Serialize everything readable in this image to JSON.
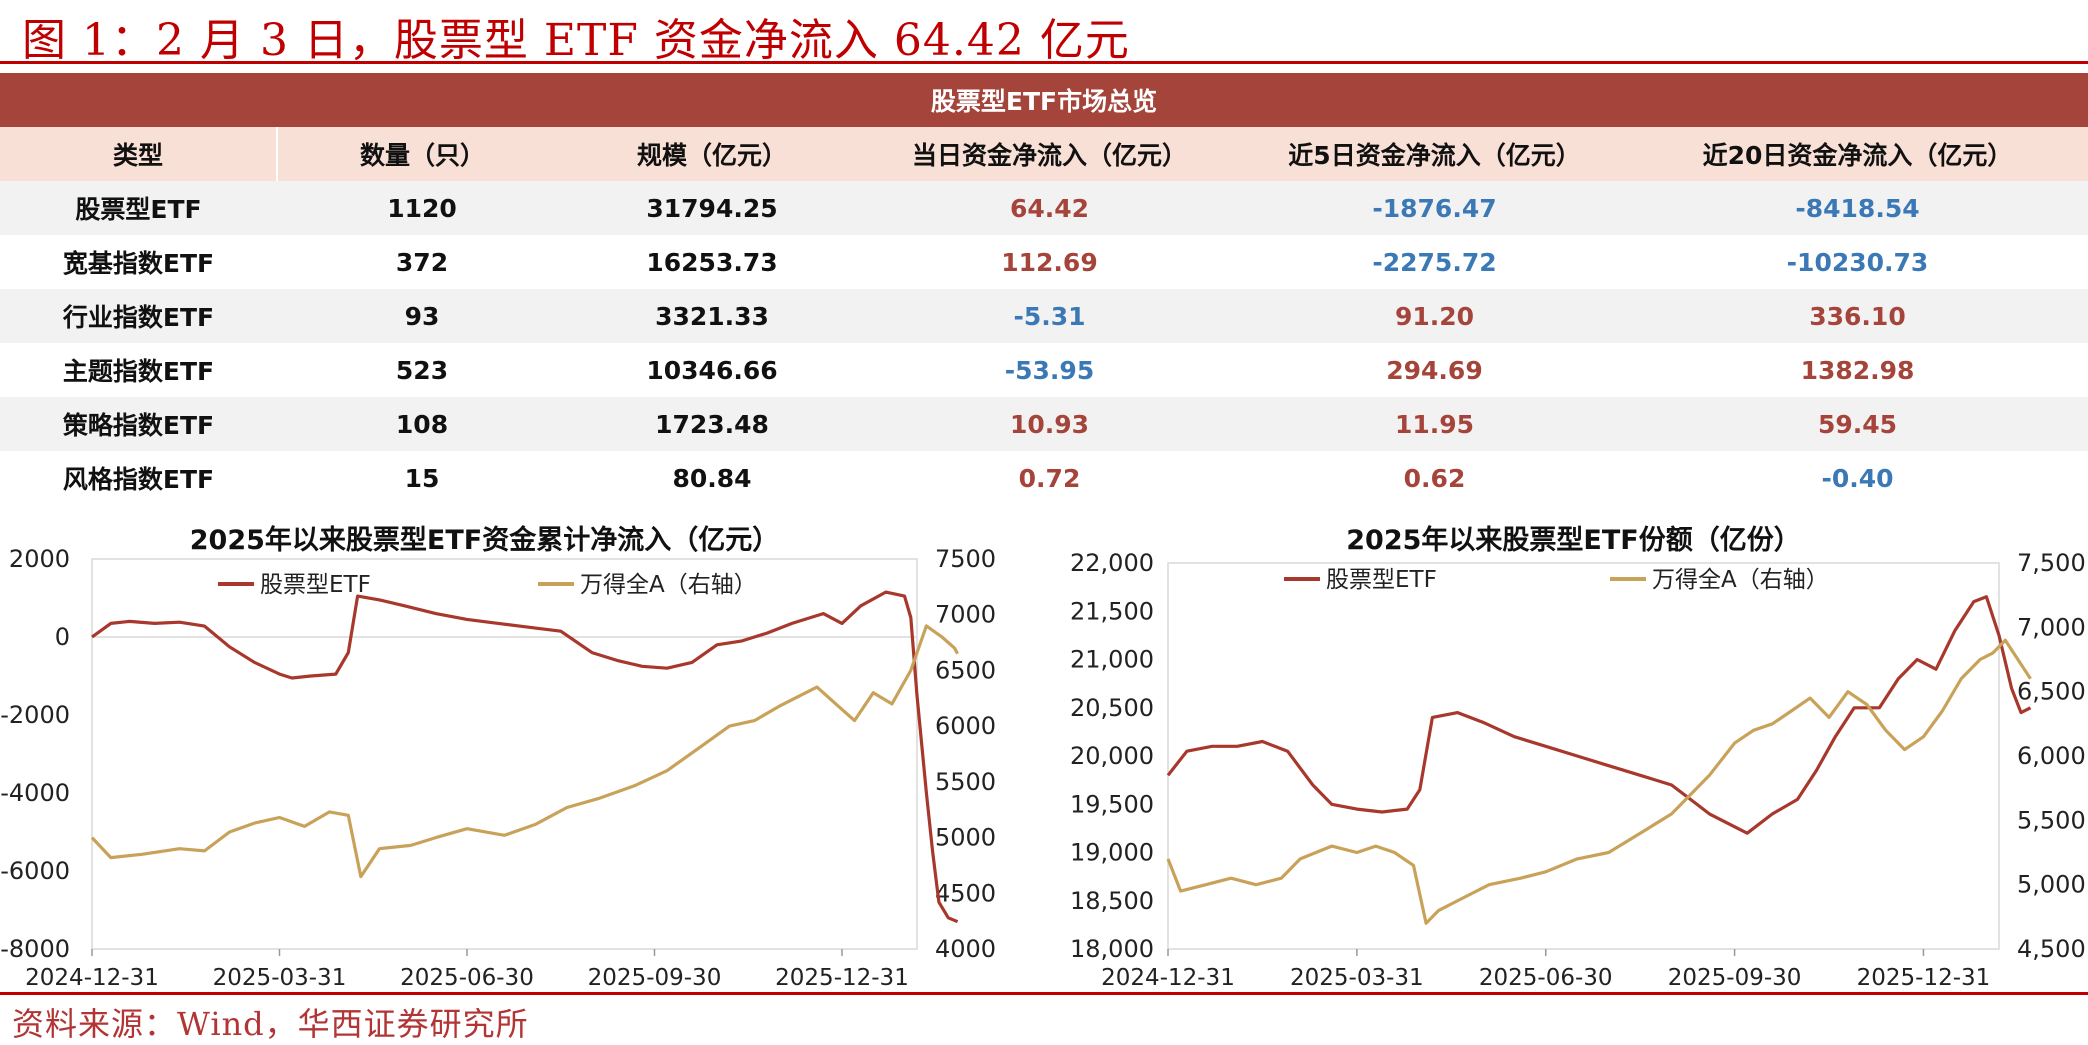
{
  "figure": {
    "title": "图 1：2 月 3 日，股票型 ETF 资金净流入 64.42 亿元",
    "source": "资料来源：Wind，华西证券研究所"
  },
  "colors": {
    "etf": "#a8372c",
    "index": "#c9a25a",
    "header": "#a5443a",
    "pos": "#a5443a",
    "neg": "#3b78b6"
  },
  "overview": {
    "caption": "股票型ETF市场总览",
    "columns": [
      "类型",
      "数量（只）",
      "规模（亿元）",
      "当日资金净流入（亿元）",
      "近5日资金净流入（亿元）",
      "近20日资金净流入（亿元）"
    ],
    "rows": [
      [
        "股票型ETF",
        "1120",
        "31794.25",
        "64.42",
        "-1876.47",
        "-8418.54"
      ],
      [
        "宽基指数ETF",
        "372",
        "16253.73",
        "112.69",
        "-2275.72",
        "-10230.73"
      ],
      [
        "行业指数ETF",
        "93",
        "3321.33",
        "-5.31",
        "91.20",
        "336.10"
      ],
      [
        "主题指数ETF",
        "523",
        "10346.66",
        "-53.95",
        "294.69",
        "1382.98"
      ],
      [
        "策略指数ETF",
        "108",
        "1723.48",
        "10.93",
        "11.95",
        "59.45"
      ],
      [
        "风格指数ETF",
        "15",
        "80.84",
        "0.72",
        "0.62",
        "-0.40"
      ]
    ]
  },
  "chart_data": [
    {
      "type": "line",
      "title": "2025年以来股票型ETF资金累计净流入（亿元）",
      "x_ticks": [
        "2024-12-31",
        "2025-03-31",
        "2025-06-30",
        "2025-09-30",
        "2025-12-31"
      ],
      "x_range": [
        0,
        13.2
      ],
      "x_unit": "months since 2024-12-31",
      "ylim": [
        -8000,
        2000
      ],
      "y_ticks": [
        2000,
        0,
        -2000,
        -4000,
        -6000,
        -8000
      ],
      "y2lim": [
        4000,
        7500
      ],
      "y2_ticks": [
        7500,
        7000,
        6500,
        6000,
        5500,
        5000,
        4500,
        4000
      ],
      "legend": "top",
      "series": [
        {
          "name": "股票型ETF",
          "axis": "left",
          "points": [
            [
              0,
              0
            ],
            [
              0.3,
              350
            ],
            [
              0.6,
              400
            ],
            [
              1.0,
              350
            ],
            [
              1.4,
              380
            ],
            [
              1.8,
              280
            ],
            [
              2.2,
              -250
            ],
            [
              2.6,
              -650
            ],
            [
              3.0,
              -950
            ],
            [
              3.2,
              -1050
            ],
            [
              3.5,
              -1000
            ],
            [
              3.9,
              -950
            ],
            [
              4.1,
              -400
            ],
            [
              4.25,
              1050
            ],
            [
              4.6,
              950
            ],
            [
              5.0,
              800
            ],
            [
              5.5,
              600
            ],
            [
              6.0,
              450
            ],
            [
              6.5,
              350
            ],
            [
              7.0,
              250
            ],
            [
              7.5,
              150
            ],
            [
              8.0,
              -400
            ],
            [
              8.4,
              -600
            ],
            [
              8.8,
              -750
            ],
            [
              9.2,
              -800
            ],
            [
              9.6,
              -650
            ],
            [
              10.0,
              -200
            ],
            [
              10.4,
              -100
            ],
            [
              10.8,
              100
            ],
            [
              11.2,
              350
            ],
            [
              11.7,
              600
            ],
            [
              12.0,
              350
            ],
            [
              12.3,
              800
            ],
            [
              12.7,
              1150
            ],
            [
              13.0,
              1050
            ],
            [
              13.1,
              500
            ],
            [
              13.2,
              -1500
            ],
            [
              13.35,
              -4000
            ],
            [
              13.45,
              -5500
            ],
            [
              13.55,
              -6800
            ],
            [
              13.7,
              -7200
            ],
            [
              13.85,
              -7300
            ]
          ]
        },
        {
          "name": "万得全A（右轴）",
          "axis": "right",
          "points": [
            [
              0,
              5000
            ],
            [
              0.3,
              4820
            ],
            [
              0.8,
              4850
            ],
            [
              1.4,
              4900
            ],
            [
              1.8,
              4880
            ],
            [
              2.2,
              5050
            ],
            [
              2.6,
              5130
            ],
            [
              3.0,
              5180
            ],
            [
              3.4,
              5100
            ],
            [
              3.8,
              5230
            ],
            [
              4.1,
              5200
            ],
            [
              4.3,
              4650
            ],
            [
              4.6,
              4900
            ],
            [
              5.1,
              4930
            ],
            [
              5.5,
              5000
            ],
            [
              6.0,
              5080
            ],
            [
              6.6,
              5020
            ],
            [
              7.1,
              5120
            ],
            [
              7.6,
              5270
            ],
            [
              8.1,
              5350
            ],
            [
              8.7,
              5470
            ],
            [
              9.2,
              5600
            ],
            [
              9.7,
              5800
            ],
            [
              10.2,
              6000
            ],
            [
              10.6,
              6050
            ],
            [
              11.0,
              6180
            ],
            [
              11.6,
              6350
            ],
            [
              11.9,
              6200
            ],
            [
              12.2,
              6050
            ],
            [
              12.5,
              6300
            ],
            [
              12.8,
              6200
            ],
            [
              13.1,
              6500
            ],
            [
              13.35,
              6900
            ],
            [
              13.6,
              6800
            ],
            [
              13.8,
              6700
            ],
            [
              13.85,
              6650
            ]
          ]
        }
      ]
    },
    {
      "type": "line",
      "title": "2025年以来股票型ETF份额（亿份）",
      "x_ticks": [
        "2024-12-31",
        "2025-03-31",
        "2025-06-30",
        "2025-09-30",
        "2025-12-31"
      ],
      "x_range": [
        0,
        13.2
      ],
      "x_unit": "months since 2024-12-31",
      "ylim": [
        18000,
        22000
      ],
      "y_ticks": [
        "22,000",
        "21,500",
        "21,000",
        "20,500",
        "20,000",
        "19,500",
        "19,000",
        "18,500",
        "18,000"
      ],
      "y2lim": [
        4500,
        7500
      ],
      "y2_ticks": [
        "7,500",
        "7,000",
        "6,500",
        "6,000",
        "5,500",
        "5,000",
        "4,500"
      ],
      "legend": "top",
      "series": [
        {
          "name": "股票型ETF",
          "axis": "left",
          "points": [
            [
              0,
              19800
            ],
            [
              0.3,
              20050
            ],
            [
              0.7,
              20100
            ],
            [
              1.1,
              20100
            ],
            [
              1.5,
              20150
            ],
            [
              1.9,
              20050
            ],
            [
              2.3,
              19700
            ],
            [
              2.6,
              19500
            ],
            [
              3.0,
              19450
            ],
            [
              3.4,
              19420
            ],
            [
              3.8,
              19450
            ],
            [
              4.0,
              19650
            ],
            [
              4.2,
              20400
            ],
            [
              4.6,
              20450
            ],
            [
              5.0,
              20350
            ],
            [
              5.5,
              20200
            ],
            [
              6.0,
              20100
            ],
            [
              6.5,
              20000
            ],
            [
              7.0,
              19900
            ],
            [
              7.5,
              19800
            ],
            [
              8.0,
              19700
            ],
            [
              8.3,
              19550
            ],
            [
              8.6,
              19400
            ],
            [
              8.9,
              19300
            ],
            [
              9.2,
              19200
            ],
            [
              9.6,
              19400
            ],
            [
              10.0,
              19550
            ],
            [
              10.3,
              19850
            ],
            [
              10.6,
              20200
            ],
            [
              10.9,
              20500
            ],
            [
              11.3,
              20500
            ],
            [
              11.6,
              20800
            ],
            [
              11.9,
              21000
            ],
            [
              12.2,
              20900
            ],
            [
              12.5,
              21300
            ],
            [
              12.8,
              21600
            ],
            [
              13.0,
              21650
            ],
            [
              13.2,
              21250
            ],
            [
              13.4,
              20700
            ],
            [
              13.55,
              20450
            ],
            [
              13.7,
              20500
            ]
          ]
        },
        {
          "name": "万得全A（右轴）",
          "axis": "right",
          "points": [
            [
              0,
              5200
            ],
            [
              0.2,
              4950
            ],
            [
              0.6,
              5000
            ],
            [
              1.0,
              5050
            ],
            [
              1.4,
              5000
            ],
            [
              1.8,
              5050
            ],
            [
              2.1,
              5200
            ],
            [
              2.6,
              5300
            ],
            [
              3.0,
              5250
            ],
            [
              3.3,
              5300
            ],
            [
              3.6,
              5250
            ],
            [
              3.9,
              5150
            ],
            [
              4.1,
              4700
            ],
            [
              4.3,
              4800
            ],
            [
              4.7,
              4900
            ],
            [
              5.1,
              5000
            ],
            [
              5.6,
              5050
            ],
            [
              6.0,
              5100
            ],
            [
              6.5,
              5200
            ],
            [
              7.0,
              5250
            ],
            [
              7.5,
              5400
            ],
            [
              8.0,
              5550
            ],
            [
              8.3,
              5700
            ],
            [
              8.6,
              5850
            ],
            [
              9.0,
              6100
            ],
            [
              9.3,
              6200
            ],
            [
              9.6,
              6250
            ],
            [
              9.9,
              6350
            ],
            [
              10.2,
              6450
            ],
            [
              10.5,
              6300
            ],
            [
              10.8,
              6500
            ],
            [
              11.1,
              6400
            ],
            [
              11.4,
              6200
            ],
            [
              11.7,
              6050
            ],
            [
              12.0,
              6150
            ],
            [
              12.3,
              6350
            ],
            [
              12.6,
              6600
            ],
            [
              12.9,
              6750
            ],
            [
              13.1,
              6800
            ],
            [
              13.3,
              6900
            ],
            [
              13.5,
              6750
            ],
            [
              13.7,
              6600
            ]
          ]
        }
      ]
    }
  ]
}
